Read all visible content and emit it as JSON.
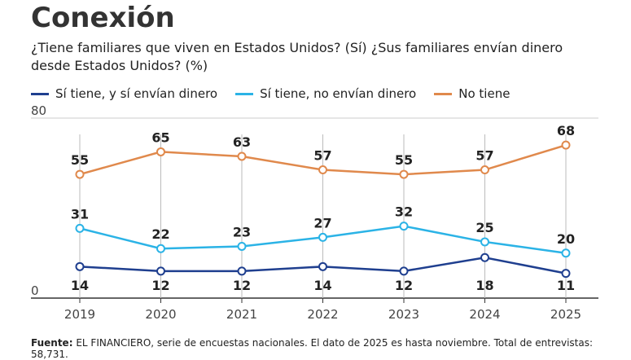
{
  "chart_data": {
    "type": "line",
    "title": "Conexión",
    "subtitle": "¿Tiene familiares que viven en Estados Unidos? (Sí) ¿Sus familiares envían dinero desde Estados Unidos? (%)",
    "categories": [
      "2019",
      "2020",
      "2021",
      "2022",
      "2023",
      "2024",
      "2025"
    ],
    "series": [
      {
        "name": "Sí tiene, y sí envían dinero",
        "color": "#1f3f8f",
        "values": [
          14,
          12,
          12,
          14,
          12,
          18,
          11
        ]
      },
      {
        "name": "Sí tiene, no envían dinero",
        "color": "#2bb3e6",
        "values": [
          31,
          22,
          23,
          27,
          32,
          25,
          20
        ]
      },
      {
        "name": "No tiene",
        "color": "#e0894c",
        "values": [
          55,
          65,
          63,
          57,
          55,
          57,
          68
        ]
      }
    ],
    "ylim": [
      0,
      80
    ],
    "yticks": [
      0,
      80
    ],
    "grid": true,
    "source_label": "Fuente:",
    "source_text": "EL FINANCIERO, serie de encuestas nacionales. El dato de 2025 es hasta noviembre. Total de entrevistas: 58,731."
  }
}
